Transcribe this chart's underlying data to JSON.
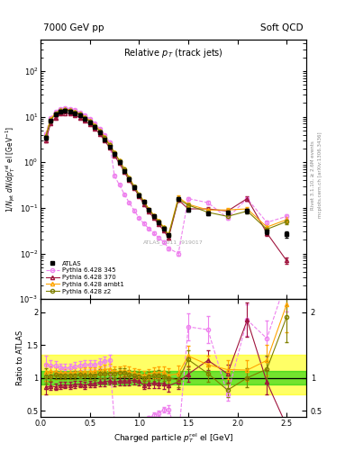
{
  "title_left": "7000 GeV pp",
  "title_right": "Soft QCD",
  "main_title": "Relative p_{T} (track jets)",
  "xlabel": "Charged particle p$_T$ el [GeV]",
  "ylabel_main": "1/N$_{jet}$ dN/dp$^{rel}_T$ el [GeV$^{-1}$]",
  "ylabel_ratio": "Ratio to ATLAS",
  "right_label_top": "Rivet 3.1.10, ≥ 2.6M events",
  "right_label_bot": "mcplots.cern.ch [arXiv:1306.3436]",
  "watermark": "ATLAS_2011_I919017",
  "atlas_x": [
    0.05,
    0.1,
    0.15,
    0.2,
    0.25,
    0.3,
    0.35,
    0.4,
    0.45,
    0.5,
    0.55,
    0.6,
    0.65,
    0.7,
    0.75,
    0.8,
    0.85,
    0.9,
    0.95,
    1.0,
    1.05,
    1.1,
    1.15,
    1.2,
    1.25,
    1.3,
    1.4,
    1.5,
    1.7,
    1.9,
    2.1,
    2.3,
    2.5
  ],
  "atlas_y": [
    3.5,
    8.0,
    11.0,
    13.0,
    13.5,
    13.0,
    12.0,
    10.5,
    9.0,
    7.5,
    6.0,
    4.5,
    3.2,
    2.2,
    1.5,
    1.0,
    0.65,
    0.42,
    0.28,
    0.19,
    0.135,
    0.09,
    0.065,
    0.048,
    0.035,
    0.025,
    0.16,
    0.09,
    0.075,
    0.08,
    0.085,
    0.03,
    0.026
  ],
  "atlas_yerr": [
    0.3,
    0.4,
    0.5,
    0.5,
    0.5,
    0.5,
    0.5,
    0.4,
    0.4,
    0.3,
    0.25,
    0.2,
    0.15,
    0.1,
    0.07,
    0.05,
    0.033,
    0.021,
    0.014,
    0.01,
    0.007,
    0.005,
    0.004,
    0.003,
    0.002,
    0.002,
    0.012,
    0.007,
    0.006,
    0.007,
    0.008,
    0.004,
    0.004
  ],
  "p345_x": [
    0.05,
    0.1,
    0.15,
    0.2,
    0.25,
    0.3,
    0.35,
    0.4,
    0.45,
    0.5,
    0.55,
    0.6,
    0.65,
    0.7,
    0.75,
    0.8,
    0.85,
    0.9,
    0.95,
    1.0,
    1.05,
    1.1,
    1.15,
    1.2,
    1.25,
    1.3,
    1.4,
    1.5,
    1.7,
    1.9,
    2.1,
    2.3,
    2.5
  ],
  "p345_y": [
    4.2,
    9.5,
    13.0,
    15.0,
    15.5,
    15.0,
    14.0,
    12.5,
    10.8,
    9.0,
    7.2,
    5.5,
    4.0,
    2.8,
    0.5,
    0.32,
    0.2,
    0.13,
    0.088,
    0.06,
    0.045,
    0.035,
    0.028,
    0.022,
    0.018,
    0.013,
    0.01,
    0.16,
    0.13,
    0.06,
    0.16,
    0.048,
    0.065
  ],
  "p345_yerr": [
    0.35,
    0.45,
    0.55,
    0.62,
    0.64,
    0.62,
    0.58,
    0.52,
    0.45,
    0.37,
    0.3,
    0.23,
    0.17,
    0.12,
    0.025,
    0.016,
    0.01,
    0.007,
    0.005,
    0.003,
    0.003,
    0.002,
    0.002,
    0.0015,
    0.0012,
    0.001,
    0.001,
    0.013,
    0.011,
    0.006,
    0.014,
    0.005,
    0.008
  ],
  "p370_x": [
    0.05,
    0.1,
    0.15,
    0.2,
    0.25,
    0.3,
    0.35,
    0.4,
    0.45,
    0.5,
    0.55,
    0.6,
    0.65,
    0.7,
    0.75,
    0.8,
    0.85,
    0.9,
    0.95,
    1.0,
    1.05,
    1.1,
    1.15,
    1.2,
    1.25,
    1.3,
    1.4,
    1.5,
    1.7,
    1.9,
    2.1,
    2.3,
    2.5
  ],
  "p370_y": [
    3.0,
    7.0,
    9.5,
    11.5,
    12.0,
    11.5,
    10.8,
    9.5,
    8.0,
    6.8,
    5.5,
    4.2,
    3.0,
    2.1,
    1.4,
    0.95,
    0.62,
    0.4,
    0.27,
    0.18,
    0.12,
    0.082,
    0.06,
    0.044,
    0.032,
    0.022,
    0.15,
    0.095,
    0.095,
    0.085,
    0.16,
    0.028,
    0.007
  ],
  "p370_yerr": [
    0.25,
    0.32,
    0.4,
    0.48,
    0.5,
    0.48,
    0.45,
    0.4,
    0.33,
    0.28,
    0.23,
    0.18,
    0.13,
    0.09,
    0.06,
    0.04,
    0.027,
    0.018,
    0.012,
    0.008,
    0.006,
    0.004,
    0.003,
    0.0025,
    0.002,
    0.0015,
    0.012,
    0.008,
    0.008,
    0.008,
    0.016,
    0.004,
    0.001
  ],
  "pambt1_x": [
    0.05,
    0.1,
    0.15,
    0.2,
    0.25,
    0.3,
    0.35,
    0.4,
    0.45,
    0.5,
    0.55,
    0.6,
    0.65,
    0.7,
    0.75,
    0.8,
    0.85,
    0.9,
    0.95,
    1.0,
    1.05,
    1.1,
    1.15,
    1.2,
    1.25,
    1.3,
    1.4,
    1.5,
    1.7,
    1.9,
    2.1,
    2.3,
    2.5
  ],
  "pambt1_y": [
    3.8,
    8.8,
    12.0,
    14.0,
    14.5,
    14.0,
    13.0,
    11.5,
    9.8,
    8.2,
    6.6,
    5.0,
    3.6,
    2.5,
    1.65,
    1.1,
    0.72,
    0.46,
    0.3,
    0.2,
    0.14,
    0.095,
    0.07,
    0.052,
    0.038,
    0.026,
    0.17,
    0.12,
    0.09,
    0.09,
    0.095,
    0.038,
    0.055
  ],
  "pambt1_yerr": [
    0.3,
    0.38,
    0.5,
    0.58,
    0.6,
    0.58,
    0.54,
    0.48,
    0.41,
    0.34,
    0.27,
    0.21,
    0.15,
    0.11,
    0.07,
    0.048,
    0.031,
    0.02,
    0.013,
    0.009,
    0.006,
    0.004,
    0.003,
    0.0025,
    0.002,
    0.0015,
    0.014,
    0.01,
    0.008,
    0.009,
    0.01,
    0.005,
    0.007
  ],
  "pz2_x": [
    0.05,
    0.1,
    0.15,
    0.2,
    0.25,
    0.3,
    0.35,
    0.4,
    0.45,
    0.5,
    0.55,
    0.6,
    0.65,
    0.7,
    0.75,
    0.8,
    0.85,
    0.9,
    0.95,
    1.0,
    1.05,
    1.1,
    1.15,
    1.2,
    1.25,
    1.3,
    1.4,
    1.5,
    1.7,
    1.9,
    2.1,
    2.3,
    2.5
  ],
  "pz2_y": [
    3.6,
    8.2,
    11.5,
    13.5,
    14.0,
    13.5,
    12.5,
    11.0,
    9.3,
    7.8,
    6.2,
    4.8,
    3.4,
    2.35,
    1.6,
    1.08,
    0.7,
    0.44,
    0.29,
    0.195,
    0.135,
    0.092,
    0.067,
    0.05,
    0.036,
    0.025,
    0.155,
    0.115,
    0.08,
    0.065,
    0.085,
    0.034,
    0.05
  ],
  "pz2_yerr": [
    0.28,
    0.36,
    0.48,
    0.56,
    0.58,
    0.56,
    0.52,
    0.46,
    0.39,
    0.32,
    0.26,
    0.2,
    0.14,
    0.1,
    0.067,
    0.046,
    0.03,
    0.019,
    0.013,
    0.008,
    0.006,
    0.004,
    0.003,
    0.0023,
    0.0019,
    0.0014,
    0.013,
    0.009,
    0.007,
    0.006,
    0.009,
    0.004,
    0.006
  ],
  "atlas_color": "#000000",
  "p345_color": "#EE82EE",
  "p370_color": "#A0153E",
  "pambt1_color": "#FFA500",
  "pz2_color": "#808000",
  "band_yellow": [
    0.75,
    1.35
  ],
  "band_green": [
    0.9,
    1.1
  ],
  "xlim": [
    0.0,
    2.7
  ],
  "ylim_main": [
    0.001,
    500
  ],
  "ylim_ratio": [
    0.4,
    2.2
  ],
  "ratio_yticks": [
    0.5,
    1.0,
    1.5,
    2.0
  ],
  "ratio_yticklabels": [
    "0.5",
    "1",
    "1.5",
    "2"
  ]
}
